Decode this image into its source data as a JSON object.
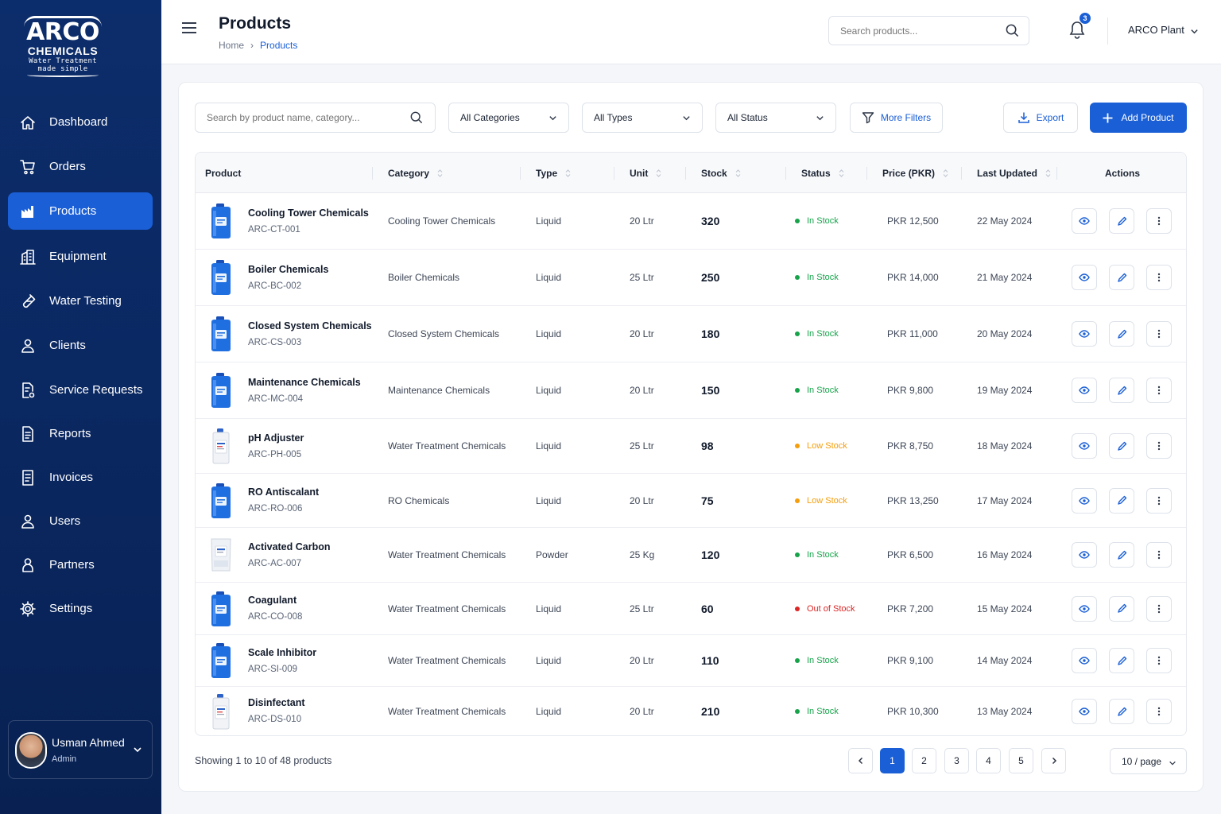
{
  "brand": {
    "line1": "ARCO",
    "line2": "CHEMICALS",
    "tagline1": "Water Treatment",
    "tagline2": "made simple"
  },
  "sidebar": {
    "items": [
      {
        "label": "Dashboard",
        "icon": "home-icon",
        "active": false
      },
      {
        "label": "Orders",
        "icon": "cart-icon",
        "active": false
      },
      {
        "label": "Products",
        "icon": "factory-icon",
        "active": true
      },
      {
        "label": "Equipment",
        "icon": "building-icon",
        "active": false
      },
      {
        "label": "Water Testing",
        "icon": "test-tube-icon",
        "active": false
      },
      {
        "label": "Clients",
        "icon": "users-icon",
        "active": false
      },
      {
        "label": "Service Requests",
        "icon": "document-gear-icon",
        "active": false
      },
      {
        "label": "Reports",
        "icon": "report-icon",
        "active": false
      },
      {
        "label": "Invoices",
        "icon": "invoice-icon",
        "active": false
      },
      {
        "label": "Users",
        "icon": "users-icon",
        "active": false
      },
      {
        "label": "Partners",
        "icon": "partner-icon",
        "active": false
      },
      {
        "label": "Settings",
        "icon": "gear-icon",
        "active": false
      }
    ],
    "user": {
      "name": "Usman Ahmed",
      "role": "Admin"
    }
  },
  "header": {
    "title": "Products",
    "breadcrumb": [
      "Home",
      "Products"
    ],
    "search_placeholder": "Search products...",
    "notifications": "3",
    "account": "ARCO Plant"
  },
  "filters": {
    "search_placeholder": "Search by product name, category...",
    "category": "All Categories",
    "type": "All Types",
    "status": "All Status",
    "more": "More Filters",
    "export": "Export",
    "add": "Add Product"
  },
  "table": {
    "columns": [
      "Product",
      "Category",
      "Type",
      "Unit",
      "Stock",
      "Status",
      "Price (PKR)",
      "Last Updated",
      "Actions"
    ],
    "rows": [
      {
        "name": "Cooling Tower Chemicals",
        "sku": "ARC-CT-001",
        "category": "Cooling Tower Chemicals",
        "type": "Liquid",
        "unit": "20 Ltr",
        "stock": "320",
        "status": "In Stock",
        "price": "PKR 12,500",
        "updated": "22 May 2024",
        "image": "blue-drum"
      },
      {
        "name": "Boiler Chemicals",
        "sku": "ARC-BC-002",
        "category": "Boiler Chemicals",
        "type": "Liquid",
        "unit": "25 Ltr",
        "stock": "250",
        "status": "In Stock",
        "price": "PKR 14,000",
        "updated": "21 May 2024",
        "image": "blue-drum"
      },
      {
        "name": "Closed System Chemicals",
        "sku": "ARC-CS-003",
        "category": "Closed System Chemicals",
        "type": "Liquid",
        "unit": "20 Ltr",
        "stock": "180",
        "status": "In Stock",
        "price": "PKR 11,000",
        "updated": "20 May 2024",
        "image": "blue-drum"
      },
      {
        "name": "Maintenance Chemicals",
        "sku": "ARC-MC-004",
        "category": "Maintenance Chemicals",
        "type": "Liquid",
        "unit": "20 Ltr",
        "stock": "150",
        "status": "In Stock",
        "price": "PKR 9,800",
        "updated": "19 May 2024",
        "image": "blue-drum"
      },
      {
        "name": "pH Adjuster",
        "sku": "ARC-PH-005",
        "category": "Water Treatment Chemicals",
        "type": "Liquid",
        "unit": "25 Ltr",
        "stock": "98",
        "status": "Low Stock",
        "price": "PKR 8,750",
        "updated": "18 May 2024",
        "image": "white-jug"
      },
      {
        "name": "RO Antiscalant",
        "sku": "ARC-RO-006",
        "category": "RO Chemicals",
        "type": "Liquid",
        "unit": "20 Ltr",
        "stock": "75",
        "status": "Low Stock",
        "price": "PKR 13,250",
        "updated": "17 May 2024",
        "image": "blue-drum"
      },
      {
        "name": "Activated Carbon",
        "sku": "ARC-AC-007",
        "category": "Water Treatment Chemicals",
        "type": "Powder",
        "unit": "25 Kg",
        "stock": "120",
        "status": "In Stock",
        "price": "PKR 6,500",
        "updated": "16 May 2024",
        "image": "white-bag"
      },
      {
        "name": "Coagulant",
        "sku": "ARC-CO-008",
        "category": "Water Treatment Chemicals",
        "type": "Liquid",
        "unit": "25 Ltr",
        "stock": "60",
        "status": "Out of Stock",
        "price": "PKR 7,200",
        "updated": "15 May 2024",
        "image": "blue-drum"
      },
      {
        "name": "Scale Inhibitor",
        "sku": "ARC-SI-009",
        "category": "Water Treatment Chemicals",
        "type": "Liquid",
        "unit": "20 Ltr",
        "stock": "110",
        "status": "In Stock",
        "price": "PKR 9,100",
        "updated": "14 May 2024",
        "image": "blue-drum"
      },
      {
        "name": "Disinfectant",
        "sku": "ARC-DS-010",
        "category": "Water Treatment Chemicals",
        "type": "Liquid",
        "unit": "20 Ltr",
        "stock": "210",
        "status": "In Stock",
        "price": "PKR 10,300",
        "updated": "13 May 2024",
        "image": "white-jug"
      }
    ]
  },
  "status_colors": {
    "In Stock": "#16a34a",
    "Low Stock": "#f59e0b",
    "Out of Stock": "#dc2626"
  },
  "footer": {
    "showing": "Showing 1 to 10 of 48 products",
    "pages": [
      "1",
      "2",
      "3",
      "4",
      "5"
    ],
    "current_page": "1",
    "per_page": "10 / page"
  },
  "colors": {
    "sidebar": "#0c2d6b",
    "accent": "#1a5fd6"
  }
}
